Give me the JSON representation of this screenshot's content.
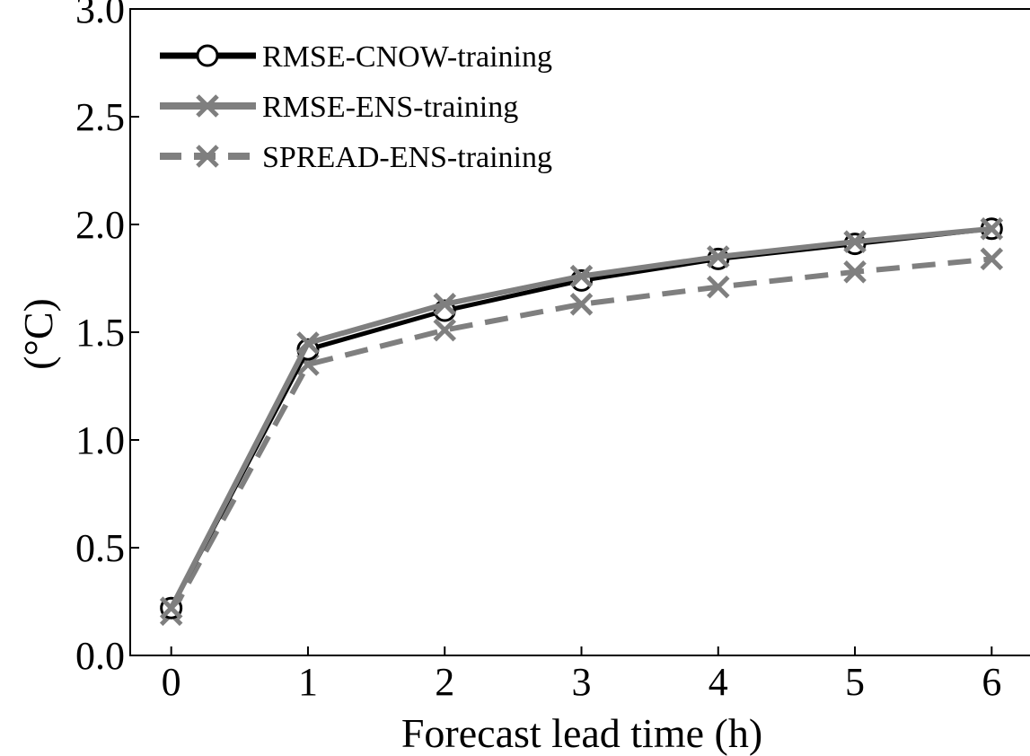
{
  "chart_data": {
    "type": "line",
    "title": "",
    "xlabel": "Forecast lead time (h)",
    "ylabel": "(°C)",
    "x": [
      0,
      1,
      2,
      3,
      4,
      5,
      6
    ],
    "xlim": [
      -0.3,
      6.3
    ],
    "ylim": [
      0,
      3.0
    ],
    "xticks": [
      "0",
      "1",
      "2",
      "3",
      "4",
      "5",
      "6"
    ],
    "yticks": [
      "0.0",
      "0.5",
      "1.0",
      "1.5",
      "2.0",
      "2.5",
      "3.0"
    ],
    "grid": false,
    "legend_position": "top-left",
    "series": [
      {
        "name": "RMSE-CNOW-training",
        "values": [
          0.22,
          1.42,
          1.6,
          1.74,
          1.84,
          1.91,
          1.98
        ],
        "color": "#000000",
        "marker": "circle",
        "linestyle": "solid"
      },
      {
        "name": "RMSE-ENS-training",
        "values": [
          0.22,
          1.45,
          1.63,
          1.76,
          1.85,
          1.92,
          1.98
        ],
        "color": "#7f7f7f",
        "marker": "x",
        "linestyle": "solid"
      },
      {
        "name": "SPREAD-ENS-training",
        "values": [
          0.19,
          1.35,
          1.51,
          1.63,
          1.71,
          1.78,
          1.84
        ],
        "color": "#7f7f7f",
        "marker": "x",
        "linestyle": "dashed"
      }
    ]
  }
}
